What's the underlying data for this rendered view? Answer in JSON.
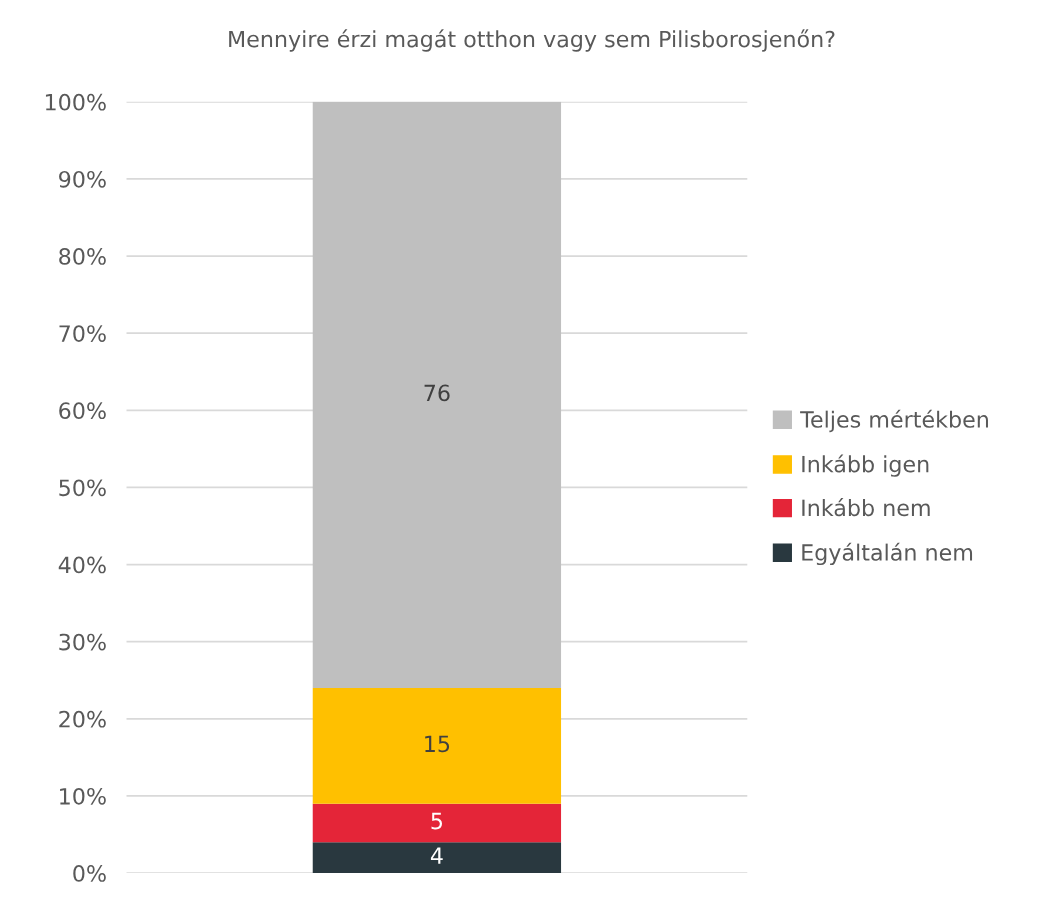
{
  "chart_data": {
    "type": "bar",
    "title": "Mennyire érzi magát otthon vagy sem Pilisborosjenőn?",
    "stacked": true,
    "categories": [
      null
    ],
    "series": [
      {
        "name": "Egyáltalán nem",
        "color": "#29383f",
        "values": [
          4
        ]
      },
      {
        "name": "Inkább nem",
        "color": "#e42538",
        "values": [
          5
        ]
      },
      {
        "name": "Inkább igen",
        "color": "#ffc000",
        "values": [
          15
        ]
      },
      {
        "name": "Teljes mértékben",
        "color": "#bfbfbf",
        "values": [
          76
        ]
      }
    ],
    "ylim": [
      0,
      100
    ],
    "yticks": [
      {
        "value": 0,
        "label": "0%"
      },
      {
        "value": 10,
        "label": "10%"
      },
      {
        "value": 20,
        "label": "20%"
      },
      {
        "value": 30,
        "label": "30%"
      },
      {
        "value": 40,
        "label": "40%"
      },
      {
        "value": 50,
        "label": "50%"
      },
      {
        "value": 60,
        "label": "60%"
      },
      {
        "value": 70,
        "label": "70%"
      },
      {
        "value": 80,
        "label": "80%"
      },
      {
        "value": 90,
        "label": "90%"
      },
      {
        "value": 100,
        "label": "100%"
      }
    ],
    "grid": "y",
    "legend": "right",
    "data_labels": true
  }
}
